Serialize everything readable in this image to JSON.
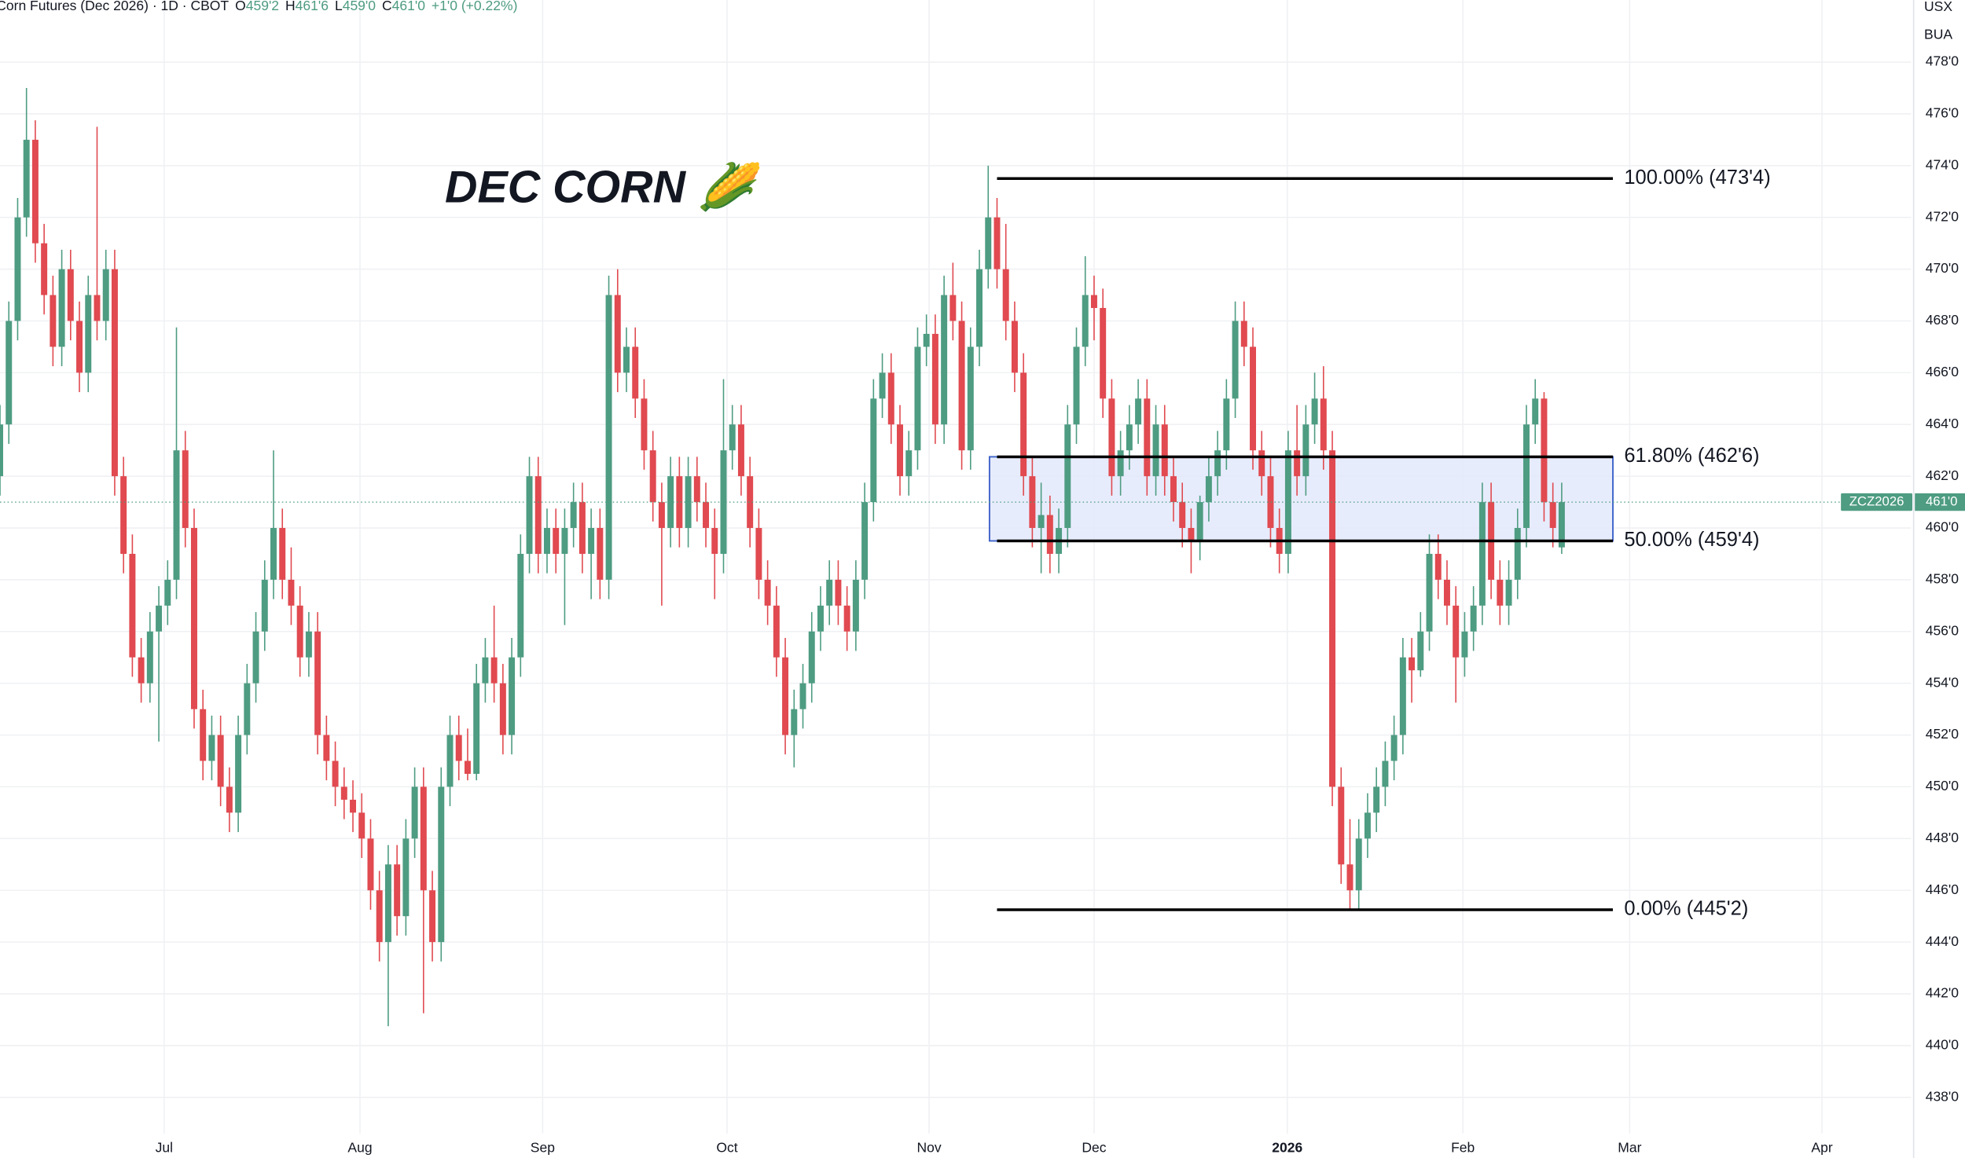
{
  "chart_data": {
    "type": "candlestick",
    "header": {
      "title": "Corn Futures (Dec 2026) · 1D · CBOT",
      "ohlc_legend": [
        {
          "label": "O",
          "value": "459'2"
        },
        {
          "label": "H",
          "value": "461'6"
        },
        {
          "label": "L",
          "value": "459'0"
        },
        {
          "label": "C",
          "value": "461'0"
        }
      ],
      "change": "+1'0 (+0.22%)"
    },
    "currency": "USX",
    "unit": "BUA",
    "annotation": "DEC CORN 🌽",
    "symbol": "ZCZ2026",
    "last_price": {
      "value": 461,
      "label": "461'0"
    },
    "up_color": "#4e9c82",
    "down_color": "#e04a50",
    "xlim": [
      0,
      216.6
    ],
    "ylim": [
      436.6,
      480.4
    ],
    "xticks": [
      {
        "value": 18.6,
        "label": "Jul"
      },
      {
        "value": 40.8,
        "label": "Aug"
      },
      {
        "value": 61.5,
        "label": "Sep"
      },
      {
        "value": 82.4,
        "label": "Oct"
      },
      {
        "value": 105.3,
        "label": "Nov"
      },
      {
        "value": 124,
        "label": "Dec"
      },
      {
        "value": 145.9,
        "label": "2026"
      },
      {
        "value": 165.8,
        "label": "Feb"
      },
      {
        "value": 184.7,
        "label": "Mar"
      },
      {
        "value": 206.5,
        "label": "Apr"
      }
    ],
    "yticks": [
      {
        "value": 438,
        "label": "438'0"
      },
      {
        "value": 440,
        "label": "440'0"
      },
      {
        "value": 442,
        "label": "442'0"
      },
      {
        "value": 444,
        "label": "444'0"
      },
      {
        "value": 446,
        "label": "446'0"
      },
      {
        "value": 448,
        "label": "448'0"
      },
      {
        "value": 450,
        "label": "450'0"
      },
      {
        "value": 452,
        "label": "452'0"
      },
      {
        "value": 454,
        "label": "454'0"
      },
      {
        "value": 456,
        "label": "456'0"
      },
      {
        "value": 458,
        "label": "458'0"
      },
      {
        "value": 460,
        "label": "460'0"
      },
      {
        "value": 462,
        "label": "462'0"
      },
      {
        "value": 464,
        "label": "464'0"
      },
      {
        "value": 466,
        "label": "466'0"
      },
      {
        "value": 468,
        "label": "468'0"
      },
      {
        "value": 470,
        "label": "470'0"
      },
      {
        "value": 472,
        "label": "472'0"
      },
      {
        "value": 474,
        "label": "474'0"
      },
      {
        "value": 476,
        "label": "476'0"
      },
      {
        "value": 478,
        "label": "478'0"
      }
    ],
    "grid": true,
    "fib": {
      "x_start": 113,
      "x_end": 182.8,
      "levels": [
        {
          "value": 473.5,
          "label": "100.00% (473'4)"
        },
        {
          "value": 462.75,
          "label": "61.80% (462'6)"
        },
        {
          "value": 459.5,
          "label": "50.00% (459'4)"
        },
        {
          "value": 445.25,
          "label": "0.00% (445'2)"
        }
      ],
      "zone_color": "#e3e9fb",
      "zone_border": "#3f63c9"
    },
    "ohlc": [
      [
        462,
        464.75,
        461.25,
        464
      ],
      [
        464,
        468.75,
        463.25,
        468
      ],
      [
        468,
        472.75,
        467.25,
        472
      ],
      [
        472,
        477,
        471.25,
        475
      ],
      [
        475,
        475.75,
        470.25,
        471
      ],
      [
        471,
        471.75,
        468.25,
        469
      ],
      [
        469,
        469.75,
        466.25,
        467
      ],
      [
        467,
        470.75,
        466.25,
        470
      ],
      [
        470,
        470.75,
        467.25,
        468
      ],
      [
        468,
        468.75,
        465.25,
        466
      ],
      [
        466,
        469.75,
        465.25,
        469
      ],
      [
        469,
        475.5,
        467.25,
        468
      ],
      [
        468,
        470.75,
        467.25,
        470
      ],
      [
        470,
        470.75,
        461.25,
        462
      ],
      [
        462,
        462.75,
        458.25,
        459
      ],
      [
        459,
        459.75,
        454.25,
        455
      ],
      [
        455,
        455.75,
        453.25,
        454
      ],
      [
        454,
        456.75,
        453.25,
        456
      ],
      [
        456,
        457.75,
        451.75,
        457
      ],
      [
        457,
        458.75,
        456.25,
        458
      ],
      [
        458,
        467.75,
        457.25,
        463
      ],
      [
        463,
        463.75,
        459.25,
        460
      ],
      [
        460,
        460.75,
        452.25,
        453
      ],
      [
        453,
        453.75,
        450.25,
        451
      ],
      [
        451,
        452.75,
        450.25,
        452
      ],
      [
        452,
        452.75,
        449.25,
        450
      ],
      [
        450,
        450.75,
        448.25,
        449
      ],
      [
        449,
        452.75,
        448.25,
        452
      ],
      [
        452,
        454.75,
        451.25,
        454
      ],
      [
        454,
        456.75,
        453.25,
        456
      ],
      [
        456,
        458.75,
        455.25,
        458
      ],
      [
        458,
        463,
        457.25,
        460
      ],
      [
        460,
        460.75,
        457.25,
        458
      ],
      [
        458,
        459.25,
        456.25,
        457
      ],
      [
        457,
        457.75,
        454.25,
        455
      ],
      [
        455,
        456.75,
        454.25,
        456
      ],
      [
        456,
        456.75,
        451.25,
        452
      ],
      [
        452,
        452.75,
        450.25,
        451
      ],
      [
        451,
        451.75,
        449.25,
        450
      ],
      [
        450,
        450.75,
        448.75,
        449.5
      ],
      [
        449.5,
        450.25,
        448.25,
        449
      ],
      [
        449,
        449.75,
        447.25,
        448
      ],
      [
        448,
        448.75,
        445.25,
        446
      ],
      [
        446,
        446.75,
        443.25,
        444
      ],
      [
        444,
        447.75,
        440.75,
        447
      ],
      [
        447,
        447.75,
        444.25,
        445
      ],
      [
        445,
        448.75,
        444.25,
        448
      ],
      [
        448,
        450.75,
        447.25,
        450
      ],
      [
        450,
        450.75,
        441.25,
        446
      ],
      [
        446,
        446.75,
        443.25,
        444
      ],
      [
        444,
        450.75,
        443.25,
        450
      ],
      [
        450,
        452.75,
        449.25,
        452
      ],
      [
        452,
        452.75,
        450.25,
        451
      ],
      [
        451,
        452.25,
        450.25,
        450.5
      ],
      [
        450.5,
        454.75,
        450.25,
        454
      ],
      [
        454,
        455.75,
        453.25,
        455
      ],
      [
        455,
        457,
        453.25,
        454
      ],
      [
        454,
        454.75,
        451.25,
        452
      ],
      [
        452,
        455.75,
        451.25,
        455
      ],
      [
        455,
        459.75,
        454.25,
        459
      ],
      [
        459,
        462.75,
        458.25,
        462
      ],
      [
        462,
        462.75,
        458.25,
        459
      ],
      [
        459,
        460.75,
        458.25,
        460
      ],
      [
        460,
        460.75,
        458.25,
        459
      ],
      [
        459,
        460.75,
        456.25,
        460
      ],
      [
        460,
        461.75,
        459.25,
        461
      ],
      [
        461,
        461.75,
        458.25,
        459
      ],
      [
        459,
        460.75,
        457.25,
        460
      ],
      [
        460,
        460.75,
        457.25,
        458
      ],
      [
        458,
        469.75,
        457.25,
        469
      ],
      [
        469,
        470,
        465.25,
        466
      ],
      [
        466,
        467.75,
        465.25,
        467
      ],
      [
        467,
        467.75,
        464.25,
        465
      ],
      [
        465,
        465.75,
        462.25,
        463
      ],
      [
        463,
        463.75,
        460.25,
        461
      ],
      [
        461,
        461.75,
        457,
        460
      ],
      [
        460,
        462.75,
        459.25,
        462
      ],
      [
        462,
        462.75,
        459.25,
        460
      ],
      [
        460,
        462.75,
        459.25,
        462
      ],
      [
        462,
        462.75,
        460.25,
        461
      ],
      [
        461,
        461.75,
        459.25,
        460
      ],
      [
        460,
        460.75,
        457.25,
        459
      ],
      [
        459,
        465.75,
        458.25,
        463
      ],
      [
        463,
        464.75,
        462.25,
        464
      ],
      [
        464,
        464.75,
        461.25,
        462
      ],
      [
        462,
        462.75,
        459.25,
        460
      ],
      [
        460,
        460.75,
        457.25,
        458
      ],
      [
        458,
        458.75,
        456.25,
        457
      ],
      [
        457,
        457.75,
        454.25,
        455
      ],
      [
        455,
        455.75,
        451.25,
        452
      ],
      [
        452,
        453.75,
        450.75,
        453
      ],
      [
        453,
        454.75,
        452.25,
        454
      ],
      [
        454,
        456.75,
        453.25,
        456
      ],
      [
        456,
        457.75,
        455.25,
        457
      ],
      [
        457,
        458.75,
        456.25,
        458
      ],
      [
        458,
        458.75,
        456.25,
        457
      ],
      [
        457,
        457.75,
        455.25,
        456
      ],
      [
        456,
        458.75,
        455.25,
        458
      ],
      [
        458,
        461.75,
        457.25,
        461
      ],
      [
        461,
        465.75,
        460.25,
        465
      ],
      [
        465,
        466.75,
        464.25,
        466
      ],
      [
        466,
        466.75,
        463.25,
        464
      ],
      [
        464,
        464.75,
        461.25,
        462
      ],
      [
        462,
        463.75,
        461.25,
        463
      ],
      [
        463,
        467.75,
        462.25,
        467
      ],
      [
        467,
        468.25,
        466.25,
        467.5
      ],
      [
        467.5,
        468.25,
        463.25,
        464
      ],
      [
        464,
        469.75,
        463.25,
        469
      ],
      [
        469,
        470.25,
        467.25,
        468
      ],
      [
        468,
        468.75,
        462.25,
        463
      ],
      [
        463,
        467.75,
        462.25,
        467
      ],
      [
        467,
        470.75,
        466.25,
        470
      ],
      [
        470,
        474,
        469.25,
        472
      ],
      [
        472,
        472.75,
        469.25,
        470
      ],
      [
        470,
        471.75,
        467.25,
        468
      ],
      [
        468,
        468.75,
        465.25,
        466
      ],
      [
        466,
        466.75,
        461.25,
        462
      ],
      [
        462,
        462.75,
        459.25,
        460
      ],
      [
        460,
        461.75,
        458.25,
        460.5
      ],
      [
        460.5,
        461.25,
        458.25,
        459
      ],
      [
        459,
        460.75,
        458.25,
        460
      ],
      [
        460,
        464.75,
        459.25,
        464
      ],
      [
        464,
        467.75,
        463.25,
        467
      ],
      [
        467,
        470.5,
        466.25,
        469
      ],
      [
        469,
        469.75,
        467.25,
        468.5
      ],
      [
        468.5,
        469.25,
        464.25,
        465
      ],
      [
        465,
        465.75,
        461.25,
        462
      ],
      [
        462,
        463.75,
        461.25,
        463
      ],
      [
        463,
        464.75,
        462.25,
        464
      ],
      [
        464,
        465.75,
        463.25,
        465
      ],
      [
        465,
        465.75,
        461.25,
        462
      ],
      [
        462,
        464.75,
        461.25,
        464
      ],
      [
        464,
        464.75,
        461.25,
        462
      ],
      [
        462,
        462.75,
        460.25,
        461
      ],
      [
        461,
        461.75,
        459.25,
        460
      ],
      [
        460,
        460.75,
        458.25,
        459.5
      ],
      [
        459.5,
        461.25,
        458.75,
        461
      ],
      [
        461,
        462.75,
        460.25,
        462
      ],
      [
        462,
        463.75,
        461.25,
        463
      ],
      [
        463,
        465.75,
        462.25,
        465
      ],
      [
        465,
        468.75,
        464.25,
        468
      ],
      [
        468,
        468.75,
        466.25,
        467
      ],
      [
        467,
        467.75,
        462.25,
        463
      ],
      [
        463,
        463.75,
        461.25,
        462
      ],
      [
        462,
        462.75,
        459.25,
        460
      ],
      [
        460,
        460.75,
        458.25,
        459
      ],
      [
        459,
        463.75,
        458.25,
        463
      ],
      [
        463,
        464.75,
        461.25,
        462
      ],
      [
        462,
        464.75,
        461.25,
        464
      ],
      [
        464,
        466,
        463.25,
        465
      ],
      [
        465,
        466.25,
        462.25,
        463
      ],
      [
        463,
        463.75,
        449.25,
        450
      ],
      [
        450,
        450.75,
        446.25,
        447
      ],
      [
        447,
        448.75,
        445.25,
        446
      ],
      [
        446,
        448.75,
        445.25,
        448
      ],
      [
        448,
        449.75,
        447.25,
        449
      ],
      [
        449,
        450.75,
        448.25,
        450
      ],
      [
        450,
        451.75,
        449.25,
        451
      ],
      [
        451,
        452.75,
        450.25,
        452
      ],
      [
        452,
        455.75,
        451.25,
        455
      ],
      [
        455,
        455.75,
        453.25,
        454.5
      ],
      [
        454.5,
        456.75,
        454.25,
        456
      ],
      [
        456,
        459.75,
        455.25,
        459
      ],
      [
        459,
        459.75,
        457.25,
        458
      ],
      [
        458,
        458.75,
        456.25,
        457
      ],
      [
        457,
        457.75,
        453.25,
        455
      ],
      [
        455,
        456.75,
        454.25,
        456
      ],
      [
        456,
        457.75,
        455.25,
        457
      ],
      [
        457,
        461.75,
        456.25,
        461
      ],
      [
        461,
        461.75,
        457.25,
        458
      ],
      [
        458,
        458.75,
        456.25,
        457
      ],
      [
        457,
        458.75,
        456.25,
        458
      ],
      [
        458,
        460.75,
        457.25,
        460
      ],
      [
        460,
        464.75,
        459.25,
        464
      ],
      [
        464,
        465.75,
        463.25,
        465
      ],
      [
        465,
        465.25,
        460.25,
        461
      ],
      [
        461,
        461.75,
        459.25,
        460
      ],
      [
        459.25,
        461.75,
        459,
        461
      ]
    ]
  }
}
